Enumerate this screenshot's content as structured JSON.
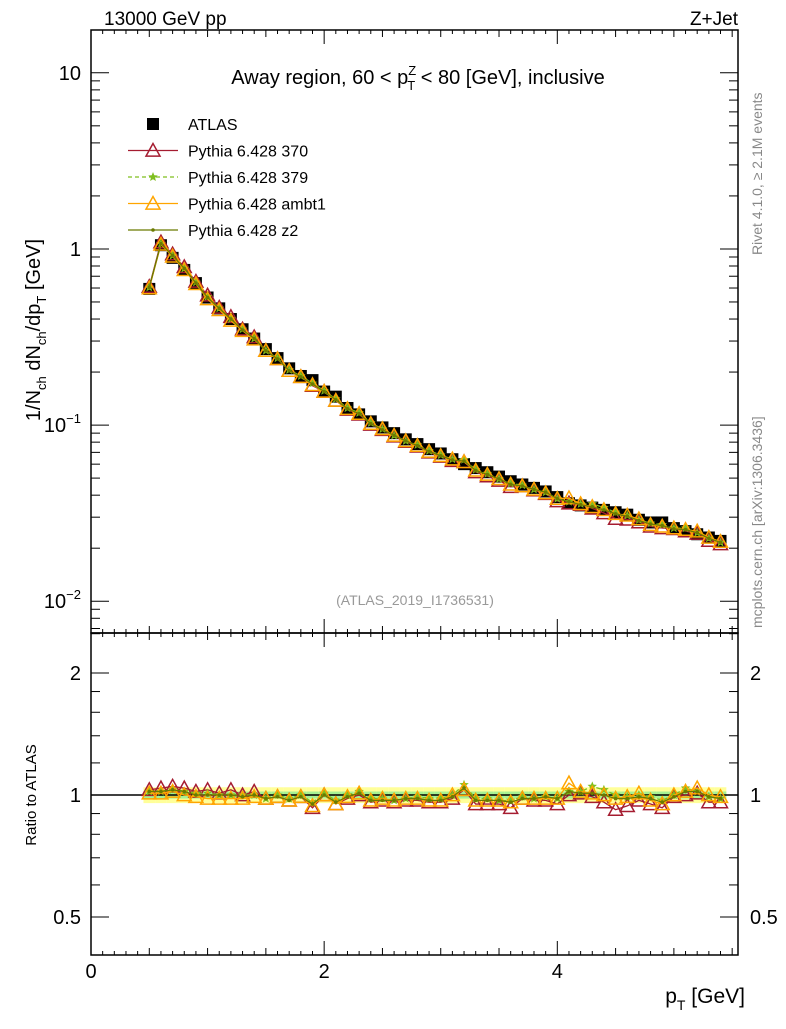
{
  "chart_data": {
    "type": "line",
    "top_left_label": "13000 GeV pp",
    "top_right_label": "Z+Jet",
    "title": "Away region, 60 < p_T^Z < 80 [GeV], inclusive",
    "title_parts": {
      "pre": "Away region, 60 < p",
      "sup": "Z",
      "sub": "T",
      "post": " < 80 [GeV], inclusive"
    },
    "ylabel": "1/N_ch dN_ch/dp_T [GeV]",
    "ylabel_parts": {
      "a": "1/N",
      "a_sub": "ch",
      "b": " dN",
      "b_sub": "ch",
      "c": "/dp",
      "c_sub": "T",
      "d": " [GeV]"
    },
    "xlabel": "p_T [GeV]",
    "xlabel_parts": {
      "a": "p",
      "a_sub": "T",
      "b": " [GeV]"
    },
    "ratio_ylabel": "Ratio to ATLAS",
    "watermark": "(ATLAS_2019_I1736531)",
    "side_text_1": "Rivet 4.1.0, ≥ 2.1M events",
    "side_text_2": "mcplots.cern.ch [arXiv:1306.3436]",
    "xlim": [
      0,
      5.55
    ],
    "ylim": [
      0.0066,
      17.5
    ],
    "yscale": "log",
    "ratio_ylim": [
      0.403,
      2.51
    ],
    "ratio_yscale": "log",
    "xticks": [
      "0",
      "2",
      "4"
    ],
    "yticks": [
      {
        "base": "10",
        "exp": ""
      },
      {
        "base": "1",
        "exp": ""
      },
      {
        "base": "10",
        "exp": "−1"
      },
      {
        "base": "10",
        "exp": "−2"
      }
    ],
    "ratio_yticks": [
      "2",
      "1",
      "0.5"
    ],
    "legend_position": "top-left",
    "x": [
      0.5,
      0.6,
      0.7,
      0.8,
      0.9,
      1.0,
      1.1,
      1.2,
      1.3,
      1.4,
      1.5,
      1.6,
      1.7,
      1.8,
      1.9,
      2.0,
      2.1,
      2.2,
      2.3,
      2.4,
      2.5,
      2.6,
      2.7,
      2.8,
      2.9,
      3.0,
      3.1,
      3.2,
      3.3,
      3.4,
      3.5,
      3.6,
      3.7,
      3.8,
      3.9,
      4.0,
      4.1,
      4.2,
      4.3,
      4.4,
      4.5,
      4.6,
      4.7,
      4.8,
      4.9,
      5.0,
      5.1,
      5.2,
      5.3,
      5.4
    ],
    "atlas": {
      "name": "ATLAS",
      "color": "#000000",
      "values": [
        0.593,
        1.05,
        0.89,
        0.76,
        0.64,
        0.53,
        0.46,
        0.4,
        0.35,
        0.31,
        0.27,
        0.24,
        0.21,
        0.19,
        0.18,
        0.155,
        0.145,
        0.125,
        0.115,
        0.105,
        0.097,
        0.09,
        0.083,
        0.078,
        0.073,
        0.069,
        0.064,
        0.06,
        0.057,
        0.054,
        0.051,
        0.048,
        0.046,
        0.044,
        0.042,
        0.039,
        0.036,
        0.035,
        0.034,
        0.033,
        0.032,
        0.031,
        0.029,
        0.028,
        0.028,
        0.026,
        0.025,
        0.024,
        0.023,
        0.022
      ],
      "band_inner": 0.02,
      "band_outer": 0.045
    },
    "series": [
      {
        "name": "Pythia 6.428 370",
        "color": "#a51c30",
        "marker": "open-triangle",
        "dash": "",
        "ratio": [
          1.03,
          1.04,
          1.05,
          1.04,
          1.02,
          1.03,
          1.01,
          1.03,
          1.0,
          1.02,
          0.98,
          0.99,
          0.97,
          0.99,
          0.93,
          1.0,
          0.95,
          0.98,
          1.0,
          0.96,
          0.97,
          0.96,
          0.97,
          0.97,
          0.96,
          0.96,
          0.98,
          1.03,
          0.95,
          0.95,
          0.95,
          0.93,
          0.98,
          0.97,
          0.97,
          0.95,
          1.0,
          1.01,
          0.99,
          0.96,
          0.92,
          0.94,
          0.97,
          0.95,
          0.93,
          0.99,
          1.0,
          1.01,
          0.96,
          0.96
        ]
      },
      {
        "name": "Pythia 6.428 379",
        "color": "#7fbf1f",
        "marker": "star",
        "dash": "4,3",
        "ratio": [
          1.02,
          1.02,
          1.03,
          1.02,
          1.01,
          1.01,
          1.0,
          1.0,
          1.0,
          1.0,
          0.98,
          1.0,
          0.98,
          1.0,
          0.96,
          1.01,
          0.97,
          1.0,
          1.02,
          0.98,
          0.98,
          0.97,
          0.98,
          0.99,
          0.98,
          0.98,
          1.0,
          1.06,
          0.98,
          0.98,
          0.97,
          0.97,
          0.99,
          0.98,
          0.99,
          0.98,
          1.02,
          1.02,
          1.05,
          1.03,
          1.0,
          0.99,
          1.0,
          0.99,
          0.97,
          1.0,
          1.04,
          1.02,
          0.99,
          0.98
        ]
      },
      {
        "name": "Pythia 6.428 ambt1",
        "color": "#ffa500",
        "marker": "open-triangle",
        "dash": "",
        "ratio": [
          1.01,
          1.01,
          1.02,
          1.0,
          0.99,
          0.98,
          0.98,
          0.98,
          0.98,
          0.99,
          0.98,
          0.99,
          0.97,
          0.99,
          0.94,
          1.0,
          0.95,
          0.99,
          1.01,
          0.97,
          0.98,
          0.97,
          0.98,
          0.98,
          0.97,
          0.97,
          1.0,
          1.03,
          0.97,
          0.97,
          0.97,
          0.96,
          0.98,
          0.98,
          0.98,
          0.98,
          1.07,
          1.02,
          1.01,
          1.0,
          0.98,
          0.99,
          1.01,
          0.97,
          0.95,
          1.0,
          1.02,
          1.04,
          1.0,
          0.99
        ]
      },
      {
        "name": "Pythia 6.428 z2",
        "color": "#6b7a00",
        "marker": "dot",
        "dash": "",
        "ratio": [
          1.02,
          1.02,
          1.03,
          1.02,
          1.0,
          1.0,
          1.0,
          1.0,
          0.99,
          1.0,
          0.98,
          0.99,
          0.97,
          0.99,
          0.95,
          1.0,
          0.96,
          0.99,
          1.01,
          0.97,
          0.97,
          0.97,
          0.98,
          0.98,
          0.97,
          0.97,
          0.99,
          1.04,
          0.97,
          0.97,
          0.97,
          0.96,
          0.98,
          0.98,
          0.99,
          0.98,
          1.02,
          1.01,
          1.01,
          1.0,
          0.98,
          0.98,
          0.99,
          0.98,
          0.96,
          0.99,
          1.02,
          1.02,
          0.99,
          0.98
        ]
      }
    ]
  }
}
